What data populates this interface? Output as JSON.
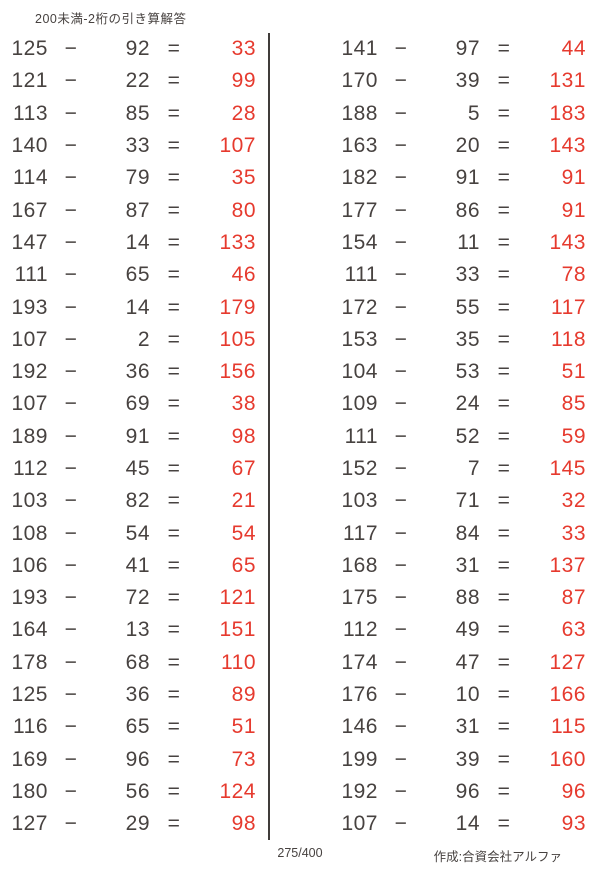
{
  "title": "200未満-2桁の引き算解答",
  "operators": {
    "minus": "−",
    "equals": "="
  },
  "colors": {
    "text": "#474240",
    "answer": "#e63a2e",
    "divider": "#403c3a"
  },
  "columns": [
    {
      "problems": [
        {
          "a": 125,
          "b": 92,
          "ans": 33
        },
        {
          "a": 121,
          "b": 22,
          "ans": 99
        },
        {
          "a": 113,
          "b": 85,
          "ans": 28
        },
        {
          "a": 140,
          "b": 33,
          "ans": 107
        },
        {
          "a": 114,
          "b": 79,
          "ans": 35
        },
        {
          "a": 167,
          "b": 87,
          "ans": 80
        },
        {
          "a": 147,
          "b": 14,
          "ans": 133
        },
        {
          "a": 111,
          "b": 65,
          "ans": 46
        },
        {
          "a": 193,
          "b": 14,
          "ans": 179
        },
        {
          "a": 107,
          "b": 2,
          "ans": 105
        },
        {
          "a": 192,
          "b": 36,
          "ans": 156
        },
        {
          "a": 107,
          "b": 69,
          "ans": 38
        },
        {
          "a": 189,
          "b": 91,
          "ans": 98
        },
        {
          "a": 112,
          "b": 45,
          "ans": 67
        },
        {
          "a": 103,
          "b": 82,
          "ans": 21
        },
        {
          "a": 108,
          "b": 54,
          "ans": 54
        },
        {
          "a": 106,
          "b": 41,
          "ans": 65
        },
        {
          "a": 193,
          "b": 72,
          "ans": 121
        },
        {
          "a": 164,
          "b": 13,
          "ans": 151
        },
        {
          "a": 178,
          "b": 68,
          "ans": 110
        },
        {
          "a": 125,
          "b": 36,
          "ans": 89
        },
        {
          "a": 116,
          "b": 65,
          "ans": 51
        },
        {
          "a": 169,
          "b": 96,
          "ans": 73
        },
        {
          "a": 180,
          "b": 56,
          "ans": 124
        },
        {
          "a": 127,
          "b": 29,
          "ans": 98
        }
      ]
    },
    {
      "problems": [
        {
          "a": 141,
          "b": 97,
          "ans": 44
        },
        {
          "a": 170,
          "b": 39,
          "ans": 131
        },
        {
          "a": 188,
          "b": 5,
          "ans": 183
        },
        {
          "a": 163,
          "b": 20,
          "ans": 143
        },
        {
          "a": 182,
          "b": 91,
          "ans": 91
        },
        {
          "a": 177,
          "b": 86,
          "ans": 91
        },
        {
          "a": 154,
          "b": 11,
          "ans": 143
        },
        {
          "a": 111,
          "b": 33,
          "ans": 78
        },
        {
          "a": 172,
          "b": 55,
          "ans": 117
        },
        {
          "a": 153,
          "b": 35,
          "ans": 118
        },
        {
          "a": 104,
          "b": 53,
          "ans": 51
        },
        {
          "a": 109,
          "b": 24,
          "ans": 85
        },
        {
          "a": 111,
          "b": 52,
          "ans": 59
        },
        {
          "a": 152,
          "b": 7,
          "ans": 145
        },
        {
          "a": 103,
          "b": 71,
          "ans": 32
        },
        {
          "a": 117,
          "b": 84,
          "ans": 33
        },
        {
          "a": 168,
          "b": 31,
          "ans": 137
        },
        {
          "a": 175,
          "b": 88,
          "ans": 87
        },
        {
          "a": 112,
          "b": 49,
          "ans": 63
        },
        {
          "a": 174,
          "b": 47,
          "ans": 127
        },
        {
          "a": 176,
          "b": 10,
          "ans": 166
        },
        {
          "a": 146,
          "b": 31,
          "ans": 115
        },
        {
          "a": 199,
          "b": 39,
          "ans": 160
        },
        {
          "a": 192,
          "b": 96,
          "ans": 96
        },
        {
          "a": 107,
          "b": 14,
          "ans": 93
        }
      ]
    }
  ],
  "footer": {
    "page": "275/400",
    "credit": "作成:合資会社アルファ"
  }
}
